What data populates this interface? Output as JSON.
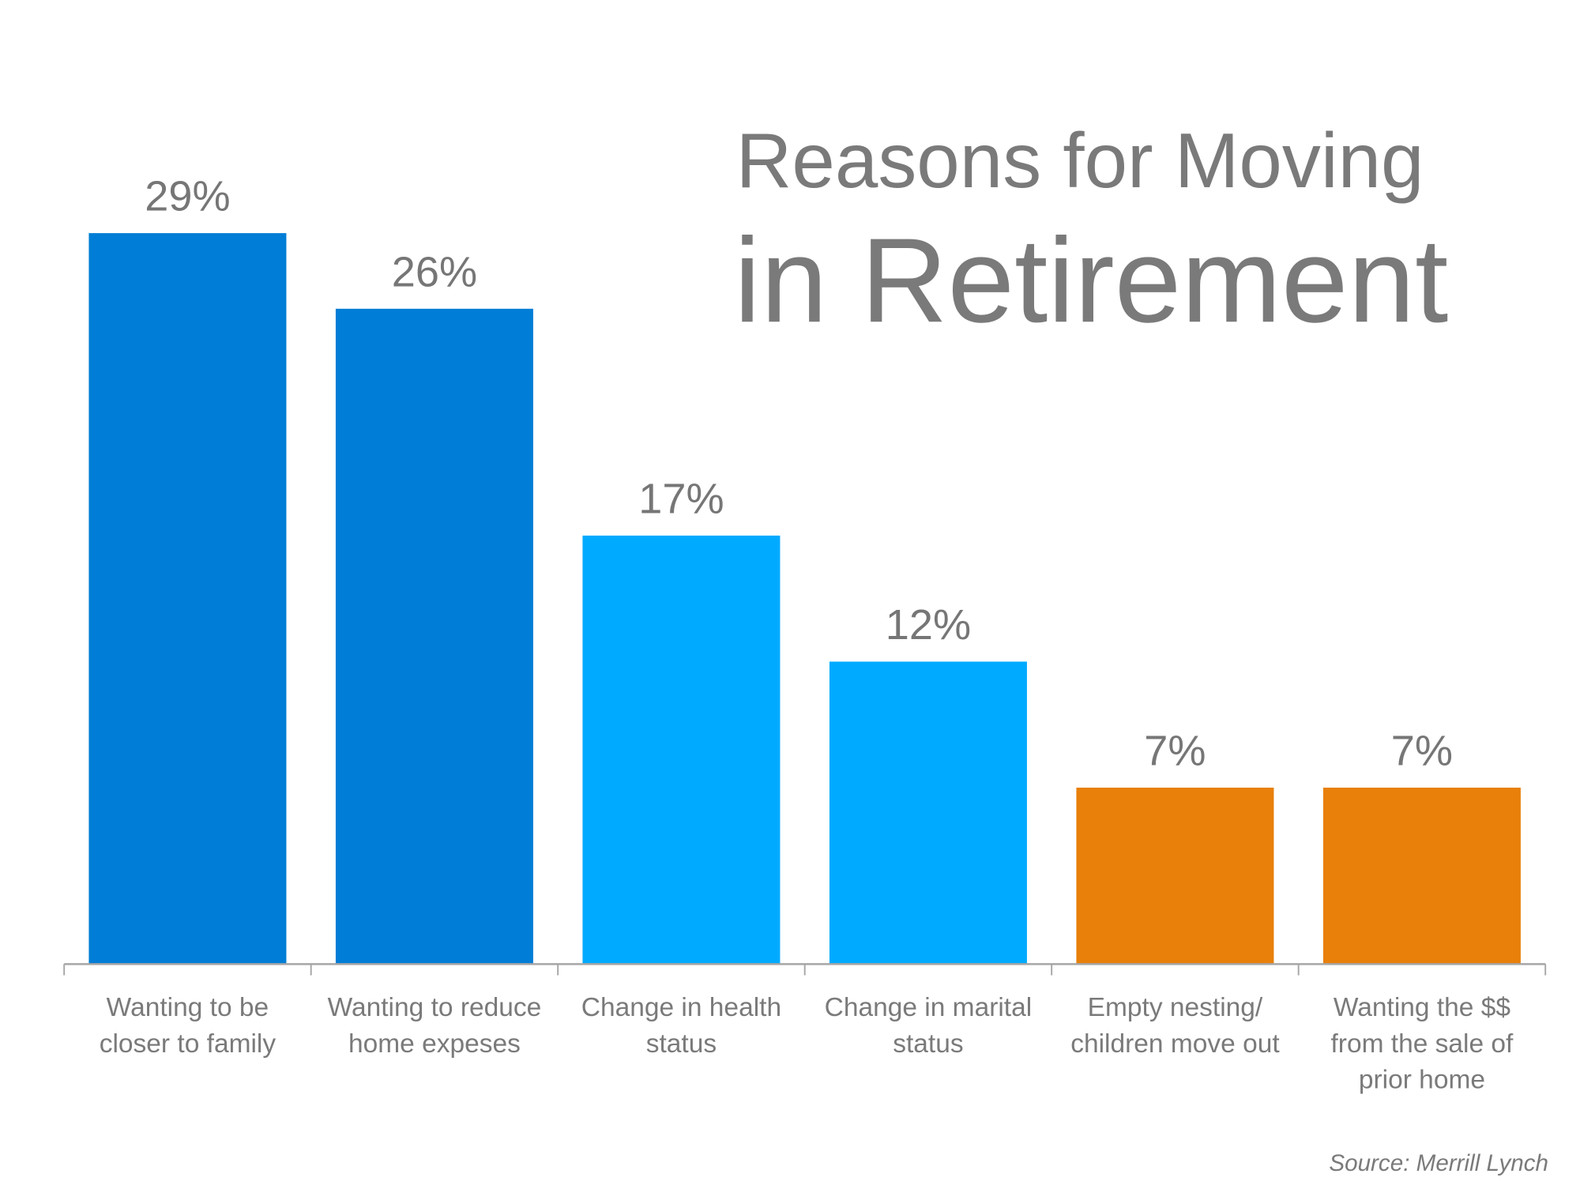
{
  "chart_data": {
    "type": "bar",
    "title_line1": "Reasons for Moving",
    "title_line2": "in Retirement",
    "categories": [
      [
        "Wanting to be",
        "closer to family"
      ],
      [
        "Wanting to reduce",
        "home expeses"
      ],
      [
        "Change in health",
        "status"
      ],
      [
        "Change in marital",
        "status"
      ],
      [
        "Empty nesting/",
        "children move out"
      ],
      [
        "Wanting the $$",
        "from the sale of",
        "prior home"
      ]
    ],
    "values": [
      29,
      26,
      17,
      12,
      7,
      7
    ],
    "value_labels": [
      "29%",
      "26%",
      "17%",
      "12%",
      "7%",
      "7%"
    ],
    "bar_colors": [
      "#007dd6",
      "#007dd6",
      "#00aaff",
      "#00aaff",
      "#e8800a",
      "#e8800a"
    ],
    "ylim": [
      0,
      29
    ],
    "grid": false,
    "legend": "none",
    "source": "Source: Merrill Lynch"
  }
}
